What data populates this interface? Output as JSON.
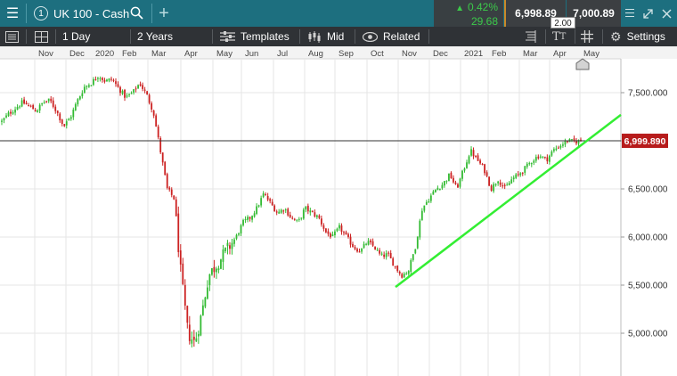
{
  "topbar": {
    "tab_number": "1",
    "instrument": "UK 100 - Cash",
    "change_percent": "0.42%",
    "change_points": "29.68",
    "bid": "6,998.89",
    "ask": "7,000.89",
    "spread": "2.00"
  },
  "toolbar": {
    "interval": "1 Day",
    "range": "2 Years",
    "templates": "Templates",
    "price_type": "Mid",
    "related": "Related",
    "settings": "Settings"
  },
  "chart": {
    "current_price_label": "6,999.890",
    "colors": {
      "up": "#33bb33",
      "down": "#cc2222",
      "trendline": "#33ee33",
      "price_tag": "#b71c1c",
      "grid": "#e6e6e6"
    },
    "x_axis_labels": [
      {
        "label": "Nov"
      },
      {
        "label": "Dec"
      },
      {
        "label": "2020"
      },
      {
        "label": "Feb"
      },
      {
        "label": "Mar"
      },
      {
        "label": "Apr"
      },
      {
        "label": "May"
      },
      {
        "label": "Jun"
      },
      {
        "label": "Jul"
      },
      {
        "label": "Aug"
      },
      {
        "label": "Sep"
      },
      {
        "label": "Oct"
      },
      {
        "label": "Nov"
      },
      {
        "label": "Dec"
      },
      {
        "label": "2021"
      },
      {
        "label": "Feb"
      },
      {
        "label": "Mar"
      },
      {
        "label": "Apr"
      },
      {
        "label": "May"
      }
    ],
    "y_axis_labels": [
      "7,500.000",
      "7,000.000",
      "6,500.000",
      "6,000.000",
      "5,500.000",
      "5,000.000"
    ],
    "y_axis_values": [
      7500,
      7000,
      6500,
      6000,
      5500,
      5000
    ],
    "y_range": [
      4600,
      7900
    ],
    "current_price": 6999.89,
    "trendline": {
      "from_value": 5480,
      "to_value": 7270,
      "from_month": "Oct 2020",
      "to_month": "May 2021"
    },
    "close_series": [
      7200,
      7280,
      7340,
      7400,
      7360,
      7310,
      7400,
      7420,
      7300,
      7150,
      7250,
      7420,
      7560,
      7600,
      7680,
      7620,
      7640,
      7540,
      7450,
      7500,
      7600,
      7480,
      7300,
      6900,
      6500,
      6400,
      5600,
      5000,
      4900,
      5200,
      5600,
      5700,
      5800,
      5900,
      6000,
      6150,
      6200,
      6300,
      6450,
      6350,
      6250,
      6300,
      6200,
      6150,
      6300,
      6250,
      6200,
      6050,
      6000,
      6100,
      6000,
      5900,
      5850,
      5950,
      5900,
      5800,
      5820,
      5700,
      5600,
      5650,
      5900,
      6300,
      6400,
      6500,
      6550,
      6650,
      6500,
      6700,
      6900,
      6800,
      6700,
      6500,
      6600,
      6500,
      6600,
      6650,
      6720,
      6800,
      6850,
      6800,
      6900,
      6950,
      7000,
      6990,
      7000
    ]
  }
}
